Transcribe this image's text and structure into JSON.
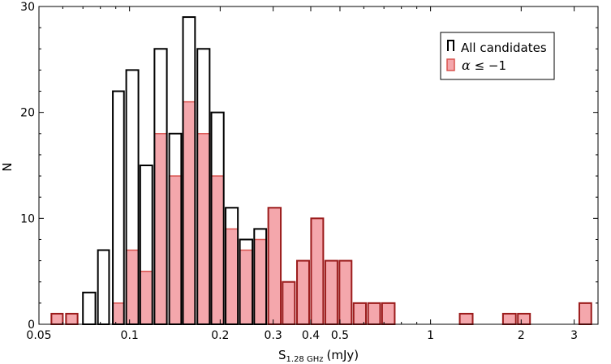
{
  "chart_data": {
    "type": "bar",
    "xscale": "log",
    "xlim": [
      0.05,
      3.6
    ],
    "ylim": [
      0,
      30
    ],
    "xlabel": "S",
    "xlabel_sub": "1.28 GHz",
    "xlabel_unit": "(mJy)",
    "ylabel": "N",
    "x_ticks": [
      {
        "value": 0.05,
        "label": "0.05"
      },
      {
        "value": 0.1,
        "label": "0.1"
      },
      {
        "value": 0.2,
        "label": "0.2"
      },
      {
        "value": 0.3,
        "label": "0.3"
      },
      {
        "value": 0.4,
        "label": "0.4"
      },
      {
        "value": 0.5,
        "label": "0.5"
      },
      {
        "value": 1,
        "label": "1"
      },
      {
        "value": 2,
        "label": "2"
      },
      {
        "value": 3,
        "label": "3"
      }
    ],
    "y_ticks": [
      {
        "value": 0,
        "label": "0"
      },
      {
        "value": 10,
        "label": "10"
      },
      {
        "value": 20,
        "label": "20"
      },
      {
        "value": 30,
        "label": "30"
      }
    ],
    "legend_position": "top-right",
    "series": [
      {
        "name": "All candidates",
        "style": "outline",
        "color": "#000000",
        "bins": [
          {
            "lo": 0.055,
            "hi": 0.06,
            "count": 1
          },
          {
            "lo": 0.0615,
            "hi": 0.0672,
            "count": 1
          },
          {
            "lo": 0.07,
            "hi": 0.077,
            "count": 3
          },
          {
            "lo": 0.0785,
            "hi": 0.0855,
            "count": 7
          },
          {
            "lo": 0.088,
            "hi": 0.0958,
            "count": 22
          },
          {
            "lo": 0.0975,
            "hi": 0.107,
            "count": 24
          },
          {
            "lo": 0.1085,
            "hi": 0.119,
            "count": 15
          },
          {
            "lo": 0.121,
            "hi": 0.133,
            "count": 26
          },
          {
            "lo": 0.1355,
            "hi": 0.1485,
            "count": 18
          },
          {
            "lo": 0.1505,
            "hi": 0.165,
            "count": 29
          },
          {
            "lo": 0.168,
            "hi": 0.1845,
            "count": 26
          },
          {
            "lo": 0.187,
            "hi": 0.2055,
            "count": 20
          },
          {
            "lo": 0.2085,
            "hi": 0.229,
            "count": 11
          },
          {
            "lo": 0.2325,
            "hi": 0.256,
            "count": 8
          },
          {
            "lo": 0.2595,
            "hi": 0.2845,
            "count": 9
          },
          {
            "lo": 0.289,
            "hi": 0.318,
            "count": 11
          },
          {
            "lo": 0.3225,
            "hi": 0.354,
            "count": 4
          },
          {
            "lo": 0.36,
            "hi": 0.395,
            "count": 6
          },
          {
            "lo": 0.401,
            "hi": 0.44,
            "count": 10
          },
          {
            "lo": 0.447,
            "hi": 0.4905,
            "count": 6
          },
          {
            "lo": 0.498,
            "hi": 0.5465,
            "count": 6
          },
          {
            "lo": 0.555,
            "hi": 0.61,
            "count": 2
          },
          {
            "lo": 0.62,
            "hi": 0.68,
            "count": 2
          },
          {
            "lo": 0.69,
            "hi": 0.76,
            "count": 2
          },
          {
            "lo": 1.25,
            "hi": 1.38,
            "count": 1
          },
          {
            "lo": 1.74,
            "hi": 1.92,
            "count": 1
          },
          {
            "lo": 1.95,
            "hi": 2.14,
            "count": 1
          },
          {
            "lo": 3.12,
            "hi": 3.42,
            "count": 2
          }
        ]
      },
      {
        "name": "α ≤ −1",
        "style": "filled",
        "color": "#f4a7ac",
        "edge_color": "#9b1c1c",
        "bins": [
          {
            "lo": 0.055,
            "hi": 0.06,
            "count": 1
          },
          {
            "lo": 0.0615,
            "hi": 0.0672,
            "count": 1
          },
          {
            "lo": 0.088,
            "hi": 0.0958,
            "count": 2
          },
          {
            "lo": 0.0975,
            "hi": 0.107,
            "count": 7
          },
          {
            "lo": 0.1085,
            "hi": 0.119,
            "count": 5
          },
          {
            "lo": 0.121,
            "hi": 0.133,
            "count": 18
          },
          {
            "lo": 0.1355,
            "hi": 0.1485,
            "count": 14
          },
          {
            "lo": 0.1505,
            "hi": 0.165,
            "count": 21
          },
          {
            "lo": 0.168,
            "hi": 0.1845,
            "count": 18
          },
          {
            "lo": 0.187,
            "hi": 0.2055,
            "count": 14
          },
          {
            "lo": 0.2085,
            "hi": 0.229,
            "count": 9
          },
          {
            "lo": 0.2325,
            "hi": 0.256,
            "count": 7
          },
          {
            "lo": 0.2595,
            "hi": 0.2845,
            "count": 8
          },
          {
            "lo": 0.289,
            "hi": 0.318,
            "count": 11
          },
          {
            "lo": 0.3225,
            "hi": 0.354,
            "count": 4
          },
          {
            "lo": 0.36,
            "hi": 0.395,
            "count": 6
          },
          {
            "lo": 0.401,
            "hi": 0.44,
            "count": 10
          },
          {
            "lo": 0.447,
            "hi": 0.4905,
            "count": 6
          },
          {
            "lo": 0.498,
            "hi": 0.5465,
            "count": 6
          },
          {
            "lo": 0.555,
            "hi": 0.61,
            "count": 2
          },
          {
            "lo": 0.62,
            "hi": 0.68,
            "count": 2
          },
          {
            "lo": 0.69,
            "hi": 0.76,
            "count": 2
          },
          {
            "lo": 1.25,
            "hi": 1.38,
            "count": 1
          },
          {
            "lo": 1.74,
            "hi": 1.92,
            "count": 1
          },
          {
            "lo": 1.95,
            "hi": 2.14,
            "count": 1
          },
          {
            "lo": 3.12,
            "hi": 3.42,
            "count": 2
          }
        ]
      }
    ],
    "legend": {
      "entries": [
        {
          "label": "All candidates"
        },
        {
          "label_symbol": "α",
          "label_rest": " ≤ −1"
        }
      ]
    }
  }
}
